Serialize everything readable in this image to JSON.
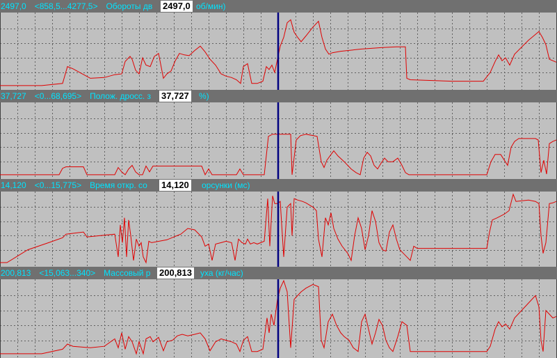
{
  "colors": {
    "header_bg": "#707070",
    "header_text": "#00e4ff",
    "plot_bg": "#c0c0c0",
    "grid": "#606060",
    "trace": "#e00000",
    "cursor": "#000080"
  },
  "cursor": {
    "x": 400
  },
  "panels": [
    {
      "value": "2497,0",
      "range": "<858,5...4277,5>",
      "name": "Обороты дв",
      "name_tail": "об/мин)",
      "cursor_value": "2497,0",
      "chart_data": {
        "type": "line",
        "x_range": [
          0,
          800
        ],
        "ylim": [
          0,
          1
        ],
        "grid": true,
        "x": [
          0,
          10,
          60,
          90,
          97,
          105,
          130,
          150,
          165,
          175,
          180,
          187,
          190,
          195,
          200,
          205,
          210,
          216,
          222,
          228,
          235,
          240,
          246,
          252,
          258,
          265,
          272,
          280,
          288,
          295,
          302,
          310,
          318,
          325,
          333,
          340,
          346,
          350,
          356,
          362,
          370,
          378,
          383,
          387,
          391,
          395,
          399,
          403,
          408,
          413,
          418,
          423,
          428,
          433,
          440,
          450,
          458,
          463,
          468,
          473,
          478,
          490,
          520,
          550,
          570,
          583,
          585,
          590,
          650,
          695,
          705,
          712,
          717,
          722,
          727,
          733,
          740,
          760,
          775,
          780,
          785,
          790,
          795,
          800
        ],
        "values": [
          0.02,
          0.02,
          0.02,
          0.05,
          0.28,
          0.25,
          0.12,
          0.13,
          0.17,
          0.18,
          0.35,
          0.42,
          0.38,
          0.23,
          0.18,
          0.4,
          0.3,
          0.28,
          0.42,
          0.46,
          0.12,
          0.18,
          0.22,
          0.36,
          0.46,
          0.44,
          0.43,
          0.5,
          0.56,
          0.48,
          0.38,
          0.3,
          0.18,
          0.15,
          0.13,
          0.1,
          0.05,
          0.28,
          0.32,
          0.05,
          0.05,
          0.08,
          0.28,
          0.24,
          0.3,
          0.2,
          0.38,
          0.56,
          0.68,
          0.88,
          0.92,
          0.75,
          0.68,
          0.62,
          0.7,
          0.82,
          0.9,
          0.68,
          0.52,
          0.45,
          0.47,
          0.49,
          0.52,
          0.54,
          0.55,
          0.55,
          0.12,
          0.1,
          0.08,
          0.08,
          0.2,
          0.35,
          0.44,
          0.36,
          0.4,
          0.3,
          0.45,
          0.64,
          0.76,
          0.68,
          0.58,
          0.38,
          0.36,
          0.34
        ]
      }
    },
    {
      "value": "37,727",
      "range": "<0...68,695>",
      "name": "Полож. дросс. з",
      "name_tail": "%)",
      "cursor_value": "37,727",
      "chart_data": {
        "type": "line",
        "x_range": [
          0,
          800
        ],
        "ylim": [
          0,
          1
        ],
        "grid": true,
        "x": [
          0,
          85,
          90,
          95,
          120,
          125,
          165,
          170,
          175,
          180,
          185,
          190,
          195,
          200,
          205,
          210,
          215,
          220,
          290,
          295,
          300,
          305,
          310,
          340,
          345,
          350,
          355,
          380,
          386,
          392,
          398,
          404,
          410,
          416,
          418,
          420,
          426,
          432,
          440,
          456,
          462,
          466,
          470,
          476,
          480,
          486,
          495,
          505,
          512,
          518,
          523,
          528,
          533,
          538,
          543,
          548,
          553,
          558,
          565,
          572,
          578,
          583,
          588,
          700,
          706,
          712,
          720,
          730,
          735,
          740,
          746,
          770,
          774,
          778,
          782,
          786,
          790,
          795,
          800
        ],
        "values": [
          0.02,
          0.02,
          0.11,
          0.13,
          0.13,
          0.02,
          0.02,
          0.12,
          0.06,
          0.02,
          0.1,
          0.15,
          0.06,
          0.02,
          0.02,
          0.14,
          0.06,
          0.14,
          0.14,
          0.02,
          0.1,
          0.02,
          0.02,
          0.02,
          0.1,
          0.02,
          0.02,
          0.02,
          0.55,
          0.58,
          0.58,
          0.58,
          0.58,
          0.58,
          0.58,
          0.02,
          0.5,
          0.56,
          0.58,
          0.55,
          0.2,
          0.12,
          0.22,
          0.3,
          0.35,
          0.28,
          0.2,
          0.1,
          0.05,
          0.02,
          0.25,
          0.33,
          0.28,
          0.15,
          0.1,
          0.18,
          0.25,
          0.2,
          0.2,
          0.25,
          0.15,
          0.05,
          0.02,
          0.02,
          0.2,
          0.3,
          0.3,
          0.15,
          0.4,
          0.48,
          0.52,
          0.52,
          0.5,
          0.05,
          0.22,
          0.03,
          0.45,
          0.48,
          0.5
        ]
      }
    },
    {
      "value": "14,120",
      "range": "<0...15,775>",
      "name": "Время откр. со",
      "name_tail": "орсунки (мс)",
      "cursor_value": "14,120",
      "chart_data": {
        "type": "line",
        "x_range": [
          0,
          800
        ],
        "ylim": [
          0,
          1
        ],
        "grid": true,
        "x": [
          0,
          10,
          40,
          70,
          90,
          95,
          120,
          125,
          165,
          170,
          173,
          176,
          179,
          182,
          185,
          188,
          192,
          196,
          200,
          203,
          206,
          210,
          214,
          218,
          240,
          250,
          260,
          270,
          280,
          290,
          295,
          300,
          305,
          310,
          318,
          325,
          333,
          338,
          343,
          348,
          353,
          356,
          360,
          365,
          370,
          380,
          385,
          388,
          392,
          395,
          399,
          403,
          408,
          413,
          418,
          420,
          423,
          428,
          435,
          440,
          450,
          455,
          458,
          461,
          463,
          468,
          472,
          476,
          480,
          486,
          492,
          500,
          505,
          510,
          515,
          520,
          525,
          530,
          535,
          540,
          545,
          550,
          555,
          560,
          565,
          570,
          575,
          580,
          585,
          590,
          595,
          600,
          650,
          700,
          704,
          708,
          715,
          725,
          732,
          738,
          742,
          760,
          770,
          775,
          778,
          781,
          785,
          790,
          795,
          800
        ],
        "values": [
          0.02,
          0.02,
          0.2,
          0.3,
          0.37,
          0.42,
          0.45,
          0.38,
          0.42,
          0.1,
          0.55,
          0.3,
          0.65,
          0.1,
          0.62,
          0.4,
          0.05,
          0.35,
          0.25,
          0.3,
          0.1,
          0.02,
          0.32,
          0.3,
          0.34,
          0.38,
          0.42,
          0.5,
          0.48,
          0.38,
          0.25,
          0.28,
          0.05,
          0.28,
          0.3,
          0.32,
          0.3,
          0.05,
          0.35,
          0.3,
          0.28,
          0.35,
          0.28,
          0.3,
          0.28,
          0.32,
          0.92,
          0.25,
          0.96,
          0.85,
          0.85,
          0.88,
          0.1,
          0.8,
          0.85,
          0.4,
          0.92,
          0.9,
          0.88,
          0.86,
          0.8,
          0.75,
          0.35,
          0.2,
          0.1,
          0.65,
          0.55,
          0.72,
          0.5,
          0.35,
          0.25,
          0.15,
          0.05,
          0.4,
          0.65,
          0.5,
          0.2,
          0.4,
          0.75,
          0.6,
          0.3,
          0.2,
          0.18,
          0.45,
          0.55,
          0.35,
          0.2,
          0.15,
          0.1,
          0.05,
          0.25,
          0.22,
          0.22,
          0.22,
          0.45,
          0.62,
          0.65,
          0.7,
          0.75,
          0.98,
          0.88,
          0.9,
          0.88,
          0.85,
          0.4,
          0.15,
          0.3,
          0.85,
          0.86,
          0.88
        ]
      }
    },
    {
      "value": "200,813",
      "range": "<15,063...340>",
      "name": "Массовый р",
      "name_tail": "уха (кг/час)",
      "cursor_value": "200,813",
      "chart_data": {
        "type": "line",
        "x_range": [
          0,
          800
        ],
        "ylim": [
          0,
          1
        ],
        "grid": true,
        "x": [
          0,
          10,
          60,
          90,
          97,
          105,
          130,
          150,
          165,
          170,
          175,
          180,
          185,
          190,
          196,
          200,
          206,
          210,
          216,
          220,
          228,
          235,
          240,
          248,
          255,
          262,
          270,
          280,
          288,
          295,
          302,
          310,
          318,
          325,
          333,
          340,
          345,
          350,
          356,
          362,
          370,
          378,
          384,
          387,
          390,
          394,
          399,
          403,
          408,
          413,
          418,
          423,
          428,
          433,
          440,
          450,
          458,
          462,
          466,
          472,
          478,
          484,
          490,
          495,
          502,
          508,
          515,
          520,
          525,
          530,
          535,
          540,
          545,
          550,
          555,
          560,
          565,
          572,
          578,
          585,
          590,
          650,
          700,
          705,
          712,
          717,
          722,
          727,
          733,
          740,
          760,
          770,
          775,
          778,
          781,
          785,
          790,
          795,
          800
        ],
        "values": [
          0.02,
          0.02,
          0.02,
          0.08,
          0.15,
          0.12,
          0.1,
          0.12,
          0.22,
          0.1,
          0.3,
          0.08,
          0.25,
          0.18,
          0.02,
          0.18,
          0.02,
          0.22,
          0.25,
          0.18,
          0.24,
          0.06,
          0.18,
          0.2,
          0.26,
          0.28,
          0.26,
          0.28,
          0.3,
          0.22,
          0.06,
          0.18,
          0.22,
          0.2,
          0.18,
          0.15,
          0.05,
          0.2,
          0.25,
          0.05,
          0.05,
          0.08,
          0.5,
          0.3,
          0.55,
          0.4,
          0.75,
          0.9,
          1.0,
          0.85,
          0.1,
          0.75,
          0.8,
          0.85,
          0.9,
          0.95,
          0.92,
          0.2,
          0.1,
          0.45,
          0.55,
          0.4,
          0.3,
          0.25,
          0.2,
          0.1,
          0.05,
          0.45,
          0.55,
          0.35,
          0.15,
          0.3,
          0.48,
          0.4,
          0.2,
          0.1,
          0.05,
          0.25,
          0.45,
          0.4,
          0.05,
          0.05,
          0.05,
          0.12,
          0.35,
          0.45,
          0.38,
          0.42,
          0.35,
          0.5,
          0.7,
          0.8,
          0.65,
          0.2,
          0.05,
          0.6,
          0.55,
          0.5,
          0.52
        ]
      }
    }
  ]
}
